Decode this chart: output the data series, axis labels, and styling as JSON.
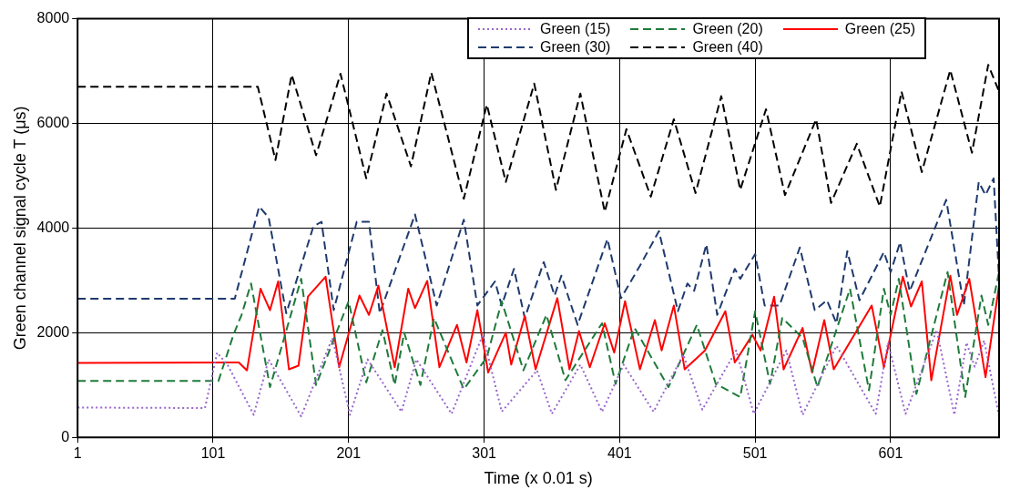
{
  "chart_data": {
    "type": "line",
    "xlabel": "Time (x 0.01 s)",
    "ylabel": "Green channel signal cycle T (μs)",
    "xlim": [
      1,
      681
    ],
    "xticks": [
      1,
      101,
      201,
      301,
      401,
      501,
      601
    ],
    "ylim": [
      0,
      8000
    ],
    "yticks": [
      0,
      2000,
      4000,
      6000,
      8000
    ],
    "grid": true,
    "legend": "top right",
    "marker": "none",
    "series": [
      {
        "name": "Green (15)",
        "color": "#9966cc",
        "line_style": "dotted",
        "x": [
          1,
          95,
          104,
          112,
          131,
          142,
          166,
          189,
          202,
          215,
          240,
          251,
          277,
          300,
          314,
          340,
          351,
          372,
          388,
          404,
          426,
          448,
          462,
          487,
          500,
          524,
          536,
          561,
          590,
          599,
          612,
          635,
          648,
          657,
          663,
          670,
          681
        ],
        "values": [
          570,
          560,
          1620,
          1370,
          430,
          1490,
          400,
          1900,
          430,
          1490,
          490,
          1490,
          450,
          1960,
          490,
          1280,
          450,
          1390,
          490,
          1390,
          490,
          1580,
          530,
          1660,
          450,
          1660,
          430,
          1750,
          450,
          1810,
          450,
          2050,
          430,
          1810,
          1350,
          1850,
          400
        ]
      },
      {
        "name": "Green (20)",
        "color": "#1e7b3a",
        "line_style": "dashed",
        "x": [
          1,
          105,
          116,
          122,
          129,
          143,
          166,
          177,
          201,
          214,
          226,
          235,
          242,
          254,
          264,
          286,
          303,
          314,
          330,
          347,
          361,
          388,
          398,
          412,
          437,
          458,
          472,
          490,
          501,
          512,
          521,
          536,
          547,
          571,
          585,
          596,
          601,
          607,
          620,
          643,
          656,
          668,
          673,
          681
        ],
        "values": [
          1080,
          1080,
          1960,
          2340,
          2940,
          960,
          3030,
          1000,
          2600,
          1050,
          2050,
          1000,
          2000,
          1000,
          2280,
          920,
          1530,
          2600,
          1280,
          2340,
          1090,
          2180,
          1020,
          2090,
          960,
          2150,
          1020,
          770,
          2410,
          1020,
          2280,
          1900,
          960,
          2840,
          900,
          2840,
          2340,
          3030,
          830,
          3160,
          770,
          2710,
          2150,
          3160
        ]
      },
      {
        "name": "Green (25)",
        "color": "#ff0000",
        "line_style": "solid",
        "x": [
          1,
          120,
          126,
          136,
          143,
          149,
          157,
          164,
          171,
          184,
          194,
          209,
          216,
          223,
          235,
          245,
          250,
          259,
          268,
          281,
          288,
          296,
          304,
          317,
          321,
          331,
          339,
          355,
          364,
          371,
          379,
          390,
          397,
          405,
          416,
          427,
          432,
          441,
          449,
          464,
          479,
          486,
          499,
          505,
          515,
          522,
          536,
          543,
          552,
          559,
          587,
          596,
          610,
          616,
          624,
          631,
          645,
          650,
          659,
          671,
          681
        ],
        "values": [
          1420,
          1430,
          1280,
          2840,
          2430,
          2980,
          1300,
          1370,
          2690,
          3070,
          1340,
          2710,
          2340,
          2900,
          1340,
          2840,
          2470,
          2990,
          1340,
          2150,
          1430,
          2430,
          1240,
          2000,
          1390,
          2320,
          1300,
          2660,
          1300,
          2030,
          1340,
          2180,
          1620,
          2600,
          1300,
          2240,
          1660,
          2520,
          1300,
          1660,
          2410,
          1430,
          1960,
          1660,
          2690,
          1300,
          2090,
          1240,
          2240,
          1300,
          2520,
          1340,
          3070,
          2500,
          2980,
          1090,
          3090,
          2340,
          3030,
          1150,
          2900
        ]
      },
      {
        "name": "Green (30)",
        "color": "#1f3a6e",
        "line_style": "dashed",
        "x": [
          1,
          117,
          135,
          142,
          155,
          175,
          181,
          190,
          207,
          216,
          224,
          250,
          266,
          286,
          296,
          309,
          314,
          323,
          331,
          345,
          353,
          358,
          370,
          392,
          402,
          416,
          430,
          444,
          451,
          456,
          465,
          473,
          486,
          490,
          501,
          508,
          519,
          534,
          545,
          554,
          561,
          569,
          578,
          596,
          601,
          608,
          615,
          642,
          655,
          666,
          671,
          677,
          681
        ],
        "values": [
          2650,
          2650,
          4410,
          4200,
          2370,
          4030,
          4120,
          2430,
          4120,
          4120,
          2370,
          4260,
          2520,
          4160,
          2520,
          2980,
          2520,
          3220,
          2280,
          3350,
          2710,
          3090,
          2150,
          3790,
          2660,
          3280,
          3940,
          2410,
          2940,
          2800,
          3690,
          2340,
          3220,
          3030,
          3500,
          2520,
          2520,
          3630,
          2430,
          2620,
          2180,
          3560,
          2620,
          3540,
          3160,
          3730,
          2790,
          4540,
          2520,
          4880,
          4630,
          4950,
          3030
        ]
      },
      {
        "name": "Green (40)",
        "color": "#000000",
        "line_style": "dashed",
        "x": [
          1,
          134,
          147,
          159,
          177,
          195,
          214,
          229,
          247,
          262,
          286,
          303,
          317,
          338,
          354,
          372,
          390,
          406,
          424,
          441,
          457,
          476,
          490,
          509,
          523,
          546,
          557,
          576,
          593,
          609,
          624,
          645,
          661,
          673,
          681
        ],
        "values": [
          6700,
          6700,
          5300,
          6930,
          5390,
          6950,
          4950,
          6570,
          5180,
          6970,
          4560,
          6360,
          4880,
          6760,
          4730,
          6570,
          4310,
          5890,
          4600,
          6080,
          4670,
          6520,
          4730,
          6270,
          4630,
          6080,
          4480,
          5610,
          4410,
          6610,
          5070,
          7020,
          5440,
          7120,
          6610
        ]
      }
    ]
  }
}
